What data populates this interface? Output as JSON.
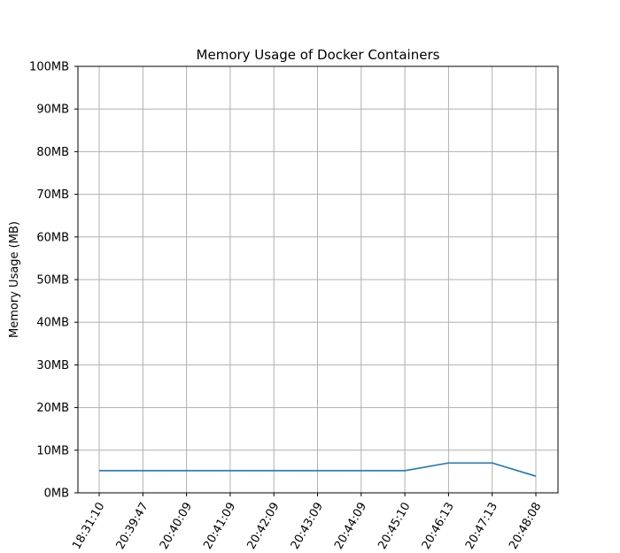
{
  "chart_data": {
    "type": "line",
    "title": "Memory Usage of Docker Containers",
    "xlabel": "",
    "ylabel": "Memory Usage (MB)",
    "ylim": [
      0,
      100
    ],
    "yticks": [
      0,
      10,
      20,
      30,
      40,
      50,
      60,
      70,
      80,
      90,
      100
    ],
    "ytick_labels": [
      "0MB",
      "10MB",
      "20MB",
      "30MB",
      "40MB",
      "50MB",
      "60MB",
      "70MB",
      "80MB",
      "90MB",
      "100MB"
    ],
    "categories": [
      "18:31:10",
      "20:39:47",
      "20:40:09",
      "20:41:09",
      "20:42:09",
      "20:43:09",
      "20:44:09",
      "20:45:10",
      "20:46:13",
      "20:47:13",
      "20:48:08"
    ],
    "series": [
      {
        "values": [
          5.2,
          5.2,
          5.2,
          5.2,
          5.2,
          5.2,
          5.2,
          5.2,
          7.0,
          7.0,
          3.9
        ],
        "color": "#1f77b4"
      }
    ],
    "grid": true,
    "legend": "none"
  }
}
